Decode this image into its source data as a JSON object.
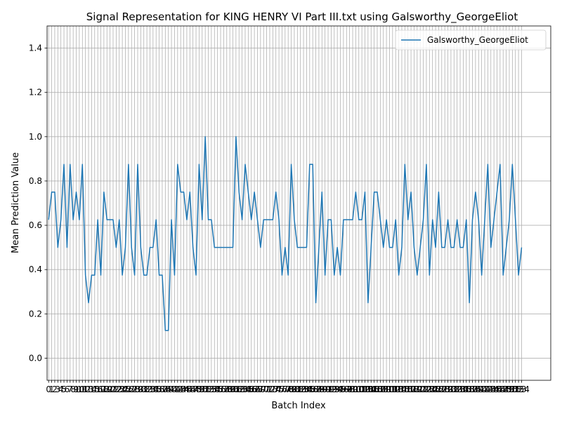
{
  "chart_data": {
    "type": "line",
    "title": "Signal Representation for KING HENRY VI Part III.txt using Galsworthy_GeorgeEliot",
    "xlabel": "Batch Index",
    "ylabel": "Mean Prediction Value",
    "xlim": [
      -0.5,
      163.5
    ],
    "ylim": [
      -0.1,
      1.5
    ],
    "yticks": [
      0.0,
      0.2,
      0.4,
      0.6,
      0.8,
      1.0,
      1.2,
      1.4
    ],
    "ytick_labels": [
      "0.0",
      "0.2",
      "0.4",
      "0.6",
      "0.8",
      "1.0",
      "1.2",
      "1.4"
    ],
    "grid": true,
    "legend_position": "top-right",
    "series": [
      {
        "name": "Galsworthy_GeorgeEliot",
        "color": "#1f77b4",
        "x_start": 0,
        "values": [
          0.625,
          0.75,
          0.75,
          0.5,
          0.625,
          0.875,
          0.5,
          0.875,
          0.625,
          0.75,
          0.625,
          0.875,
          0.375,
          0.25,
          0.375,
          0.375,
          0.625,
          0.375,
          0.75,
          0.625,
          0.625,
          0.625,
          0.5,
          0.625,
          0.375,
          0.5,
          0.875,
          0.5,
          0.375,
          0.875,
          0.5,
          0.375,
          0.375,
          0.5,
          0.5,
          0.625,
          0.375,
          0.375,
          0.125,
          0.125,
          0.625,
          0.375,
          0.875,
          0.75,
          0.75,
          0.625,
          0.75,
          0.5,
          0.375,
          0.875,
          0.625,
          1.0,
          0.625,
          0.625,
          0.5,
          0.5,
          0.5,
          0.5,
          0.5,
          0.5,
          0.5,
          1.0,
          0.75,
          0.625,
          0.875,
          0.75,
          0.625,
          0.75,
          0.625,
          0.5,
          0.625,
          0.625,
          0.625,
          0.625,
          0.75,
          0.625,
          0.375,
          0.5,
          0.375,
          0.875,
          0.625,
          0.5,
          0.5,
          0.5,
          0.5,
          0.875,
          0.875,
          0.25,
          0.5,
          0.75,
          0.375,
          0.625,
          0.625,
          0.375,
          0.5,
          0.375,
          0.625,
          0.625,
          0.625,
          0.625,
          0.75,
          0.625,
          0.625,
          0.75,
          0.25,
          0.5,
          0.75,
          0.75,
          0.625,
          0.5,
          0.625,
          0.5,
          0.5,
          0.625,
          0.375,
          0.5,
          0.875,
          0.625,
          0.75,
          0.5,
          0.375,
          0.5,
          0.625,
          0.875,
          0.375,
          0.625,
          0.5,
          0.75,
          0.5,
          0.5,
          0.625,
          0.5,
          0.5,
          0.625,
          0.5,
          0.5,
          0.625,
          0.25,
          0.625,
          0.75,
          0.625,
          0.375,
          0.625,
          0.875,
          0.5,
          0.625,
          0.75,
          0.875,
          0.375,
          0.5,
          0.625,
          0.875,
          0.625,
          0.375,
          0.5
        ]
      }
    ]
  }
}
